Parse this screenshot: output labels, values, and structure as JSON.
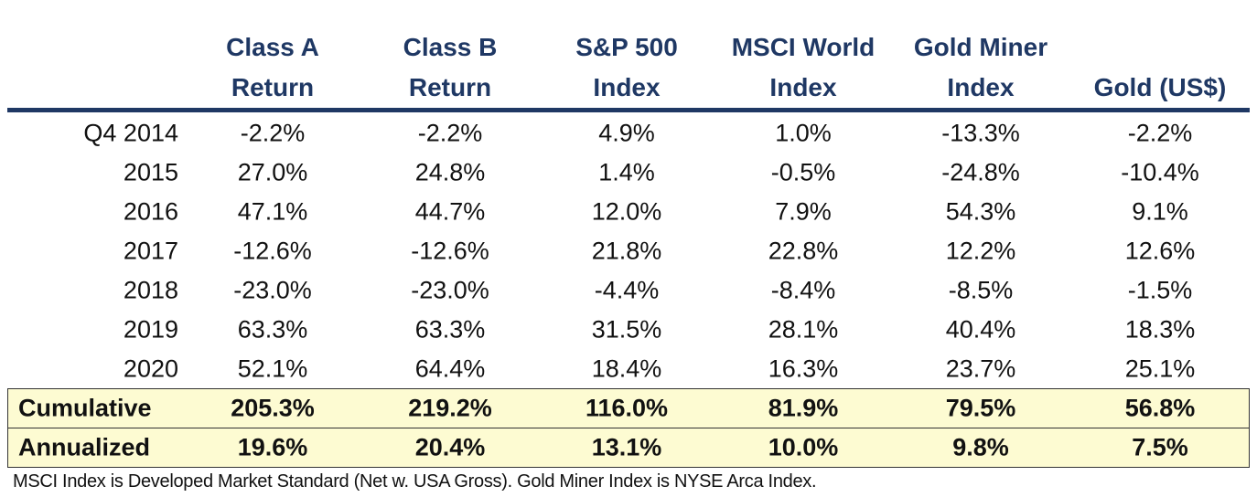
{
  "table": {
    "columns": [
      {
        "lines": [
          "Class A",
          "Return"
        ]
      },
      {
        "lines": [
          "Class B",
          "Return"
        ]
      },
      {
        "lines": [
          "S&P 500",
          "Index"
        ]
      },
      {
        "lines": [
          "MSCI World",
          "Index"
        ]
      },
      {
        "lines": [
          "Gold Miner",
          "Index"
        ]
      },
      {
        "lines": [
          "Gold (US$)"
        ]
      }
    ],
    "rows": [
      {
        "label": "Q4 2014",
        "cells": [
          "-2.2%",
          "-2.2%",
          "4.9%",
          "1.0%",
          "-13.3%",
          "-2.2%"
        ]
      },
      {
        "label": "2015",
        "cells": [
          "27.0%",
          "24.8%",
          "1.4%",
          "-0.5%",
          "-24.8%",
          "-10.4%"
        ]
      },
      {
        "label": "2016",
        "cells": [
          "47.1%",
          "44.7%",
          "12.0%",
          "7.9%",
          "54.3%",
          "9.1%"
        ]
      },
      {
        "label": "2017",
        "cells": [
          "-12.6%",
          "-12.6%",
          "21.8%",
          "22.8%",
          "12.2%",
          "12.6%"
        ]
      },
      {
        "label": "2018",
        "cells": [
          "-23.0%",
          "-23.0%",
          "-4.4%",
          "-8.4%",
          "-8.5%",
          "-1.5%"
        ]
      },
      {
        "label": "2019",
        "cells": [
          "63.3%",
          "63.3%",
          "31.5%",
          "28.1%",
          "40.4%",
          "18.3%"
        ]
      },
      {
        "label": "2020",
        "cells": [
          "52.1%",
          "64.4%",
          "18.4%",
          "16.3%",
          "23.7%",
          "25.1%"
        ]
      }
    ],
    "summary_rows": [
      {
        "label": "Cumulative",
        "cells": [
          "205.3%",
          "219.2%",
          "116.0%",
          "81.9%",
          "79.5%",
          "56.8%"
        ]
      },
      {
        "label": "Annualized",
        "cells": [
          "19.6%",
          "20.4%",
          "13.1%",
          "10.0%",
          "9.8%",
          "7.5%"
        ]
      }
    ]
  },
  "footnote": "MSCI Index is Developed Market Standard (Net w. USA Gross). Gold Miner Index is NYSE Arca Index."
}
